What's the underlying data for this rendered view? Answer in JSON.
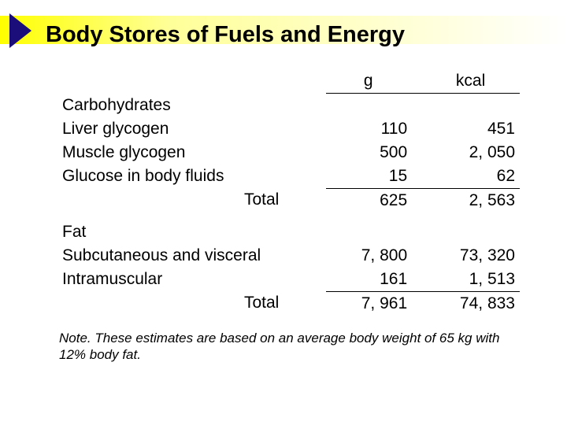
{
  "title": "Body Stores of Fuels and Energy",
  "columns": {
    "g": "g",
    "kcal": "kcal"
  },
  "sections": {
    "carb": {
      "heading": "Carbohydrates",
      "rows": {
        "r0": {
          "label": "Liver glycogen",
          "g": "110",
          "kcal": "451"
        },
        "r1": {
          "label": "Muscle glycogen",
          "g": "500",
          "kcal": "2, 050"
        },
        "r2": {
          "label": "Glucose in body fluids",
          "g": "15",
          "kcal": "62"
        }
      },
      "total": {
        "label": "Total",
        "g": "625",
        "kcal": "2, 563"
      }
    },
    "fat": {
      "heading": "Fat",
      "rows": {
        "r0": {
          "label": "Subcutaneous and visceral",
          "g": "7, 800",
          "kcal": "73, 320"
        },
        "r1": {
          "label": "Intramuscular",
          "g": "161",
          "kcal": "1, 513"
        }
      },
      "total": {
        "label": "Total",
        "g": "7, 961",
        "kcal": "74, 833"
      }
    }
  },
  "note": {
    "prefix": "Note.",
    "text": " These estimates are based on an average body weight of 65 kg with 12% body fat."
  },
  "colors": {
    "bullet": "#1c0e7a",
    "gradient_from": "#ffff00",
    "gradient_to": "#ffffff",
    "text": "#000000",
    "bg": "#ffffff"
  }
}
